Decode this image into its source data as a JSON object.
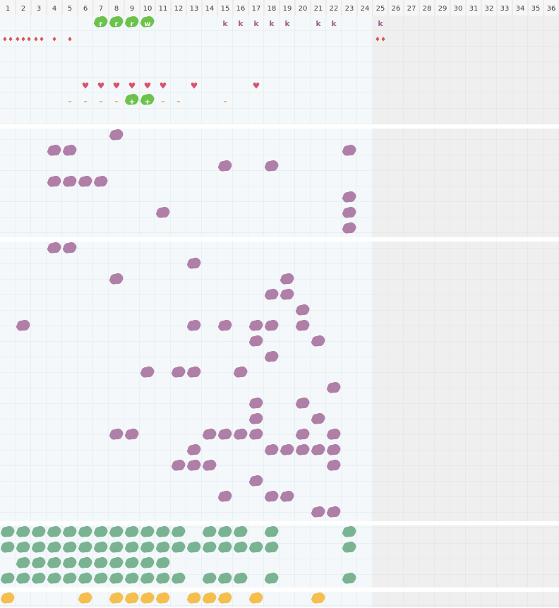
{
  "columns": [
    1,
    2,
    3,
    4,
    5,
    6,
    7,
    8,
    9,
    10,
    11,
    12,
    13,
    14,
    15,
    16,
    17,
    18,
    19,
    20,
    21,
    22,
    23,
    24,
    25,
    26,
    27,
    28,
    29,
    30,
    31,
    32,
    33,
    34,
    35,
    36
  ],
  "sections": [
    {
      "rows": [
        [
          {
            "col": 7,
            "text": "r",
            "kind": "tile"
          },
          {
            "col": 8,
            "text": "r",
            "kind": "tile"
          },
          {
            "col": 9,
            "text": "r",
            "kind": "tile"
          },
          {
            "col": 10,
            "text": "w",
            "kind": "tile"
          },
          {
            "col": 15,
            "text": "k",
            "kind": "letter"
          },
          {
            "col": 16,
            "text": "k",
            "kind": "letter"
          },
          {
            "col": 17,
            "text": "k",
            "kind": "letter"
          },
          {
            "col": 18,
            "text": "k",
            "kind": "letter"
          },
          {
            "col": 19,
            "text": "k",
            "kind": "letter"
          },
          {
            "col": 21,
            "text": "k",
            "kind": "letter"
          },
          {
            "col": 22,
            "text": "k",
            "kind": "letter"
          },
          {
            "col": 25,
            "text": "k",
            "kind": "letter"
          }
        ],
        [
          {
            "col": 1,
            "text": "♦♦",
            "kind": "drop"
          },
          {
            "col": 2,
            "text": "♦♦♦",
            "kind": "drop"
          },
          {
            "col": 3,
            "text": "♦♦",
            "kind": "drop"
          },
          {
            "col": 4,
            "text": "♦",
            "kind": "drop"
          },
          {
            "col": 5,
            "text": "♦",
            "kind": "drop"
          },
          {
            "col": 25,
            "text": "♦♦",
            "kind": "drop"
          }
        ],
        [],
        [],
        [
          {
            "col": 6,
            "text": "♥",
            "kind": "heart"
          },
          {
            "col": 7,
            "text": "♥",
            "kind": "heart"
          },
          {
            "col": 8,
            "text": "♥",
            "kind": "heart"
          },
          {
            "col": 9,
            "text": "♥",
            "kind": "heart"
          },
          {
            "col": 10,
            "text": "♥",
            "kind": "heart"
          },
          {
            "col": 11,
            "text": "♥",
            "kind": "heart"
          },
          {
            "col": 13,
            "text": "♥",
            "kind": "heart"
          },
          {
            "col": 17,
            "text": "♥",
            "kind": "heart"
          }
        ],
        [
          {
            "col": 5,
            "text": "–",
            "kind": "dash"
          },
          {
            "col": 6,
            "text": "–",
            "kind": "dash"
          },
          {
            "col": 7,
            "text": "–",
            "kind": "dash"
          },
          {
            "col": 8,
            "text": "–",
            "kind": "dash"
          },
          {
            "col": 9,
            "text": "+",
            "kind": "tile"
          },
          {
            "col": 10,
            "text": "+",
            "kind": "tile"
          },
          {
            "col": 11,
            "text": "–",
            "kind": "dash"
          },
          {
            "col": 12,
            "text": "–",
            "kind": "dash"
          },
          {
            "col": 15,
            "text": "–",
            "kind": "dash"
          }
        ],
        []
      ]
    },
    {
      "color": "#b07fa8",
      "rows": [
        [
          8
        ],
        [
          4,
          5,
          23
        ],
        [
          15,
          18
        ],
        [
          4,
          5,
          6,
          7
        ],
        [
          23
        ],
        [
          11,
          23
        ],
        [
          23
        ]
      ]
    },
    {
      "color": "#b07fa8",
      "rows": [
        [
          4,
          5
        ],
        [
          13
        ],
        [
          8,
          19
        ],
        [
          18,
          19
        ],
        [
          20
        ],
        [
          2,
          13,
          15,
          17,
          18,
          20
        ],
        [
          17,
          21
        ],
        [
          18
        ],
        [
          10,
          12,
          13,
          16
        ],
        [
          22
        ],
        [
          17,
          20
        ],
        [
          17,
          21
        ],
        [
          8,
          9,
          14,
          15,
          16,
          17,
          20,
          22
        ],
        [
          13,
          18,
          19,
          20,
          21,
          22
        ],
        [
          12,
          13,
          14,
          22
        ],
        [
          17
        ],
        [
          15,
          18,
          19
        ],
        [
          21,
          22
        ]
      ]
    },
    {
      "color": "#7ab392",
      "rows": [
        [
          1,
          2,
          3,
          4,
          5,
          6,
          7,
          8,
          9,
          10,
          11,
          12,
          14,
          15,
          16,
          18,
          23
        ],
        [
          1,
          2,
          3,
          4,
          5,
          6,
          7,
          8,
          9,
          10,
          11,
          12,
          13,
          14,
          15,
          16,
          17,
          18,
          23
        ],
        [
          2,
          3,
          4,
          5,
          6,
          7,
          8,
          9,
          10,
          11
        ],
        [
          1,
          2,
          3,
          4,
          5,
          6,
          7,
          8,
          9,
          10,
          11,
          12,
          14,
          15,
          16,
          18,
          23
        ]
      ]
    },
    {
      "color": "#f5bf4f",
      "rows": [
        [
          1,
          6,
          8,
          9,
          10,
          11,
          13,
          14,
          15,
          17,
          21
        ]
      ]
    }
  ]
}
